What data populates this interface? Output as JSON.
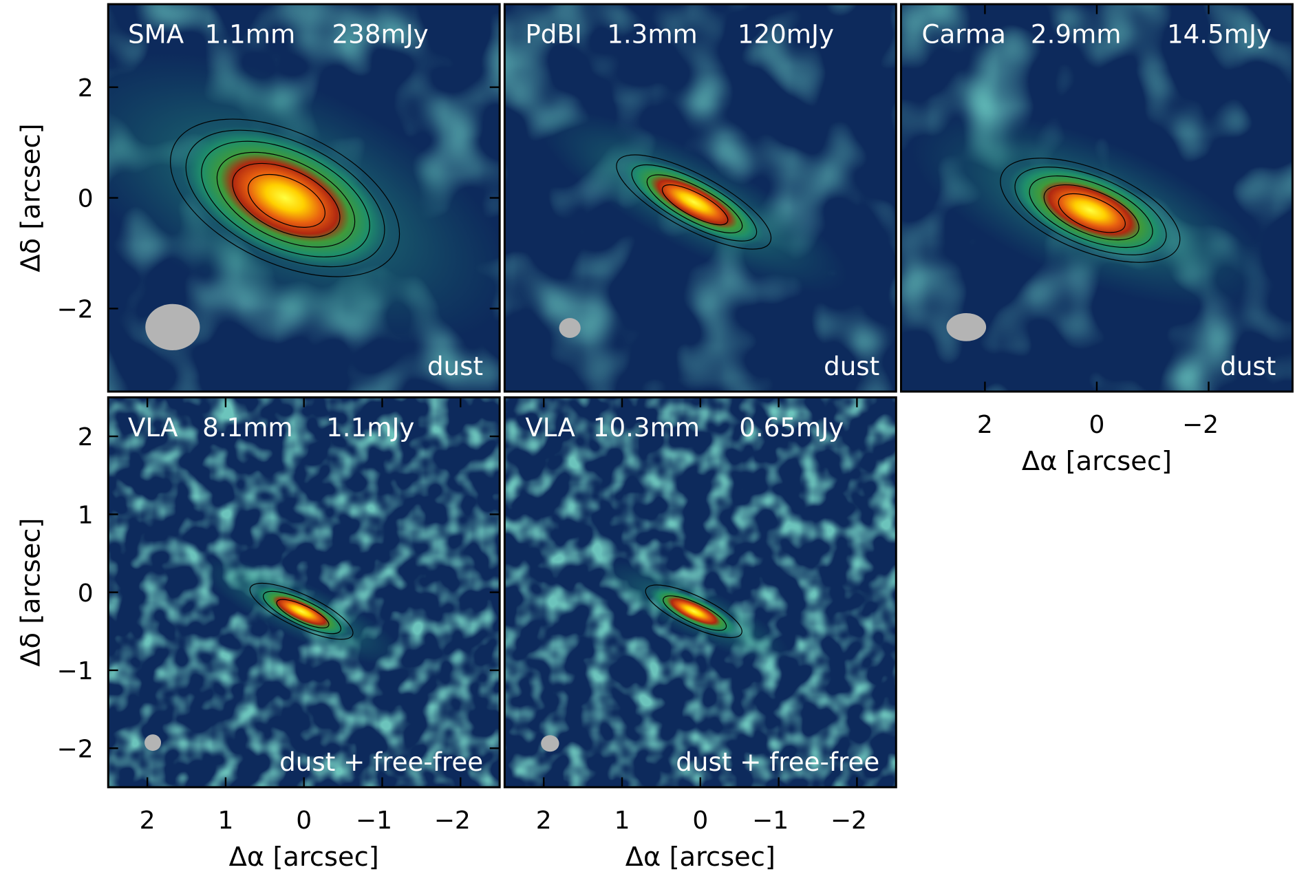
{
  "chart_data": [
    {
      "type": "image",
      "instrument": "SMA",
      "wavelength": "1.1mm",
      "flux": "238mJy",
      "annotation": "dust",
      "xlim": [
        3.5,
        -3.5
      ],
      "ylim": [
        -3.5,
        3.5
      ],
      "yticks": [
        {
          "value": -2,
          "label": "−2"
        },
        0,
        2
      ],
      "ylabel": "Δδ [arcsec]"
    },
    {
      "type": "image",
      "instrument": "PdBI",
      "wavelength": "1.3mm",
      "flux": "120mJy",
      "annotation": "dust",
      "xlim": [
        3.5,
        -3.5
      ],
      "ylim": [
        -3.5,
        3.5
      ]
    },
    {
      "type": "image",
      "instrument": "Carma",
      "wavelength": "2.9mm",
      "flux": "14.5mJy",
      "annotation": "dust",
      "xlim": [
        3.5,
        -3.5
      ],
      "ylim": [
        -3.5,
        3.5
      ],
      "xticks": [
        2,
        0,
        {
          "value": -2,
          "label": "−2"
        }
      ],
      "xlabel": "Δα [arcsec]"
    },
    {
      "type": "image",
      "instrument": "VLA",
      "wavelength": "8.1mm",
      "flux": "1.1mJy",
      "annotation": "dust + free-free",
      "xlim": [
        2.5,
        -2.5
      ],
      "ylim": [
        -2.5,
        2.5
      ],
      "xticks": [
        2,
        1,
        0,
        {
          "value": -1,
          "label": "−1"
        },
        {
          "value": -2,
          "label": "−2"
        }
      ],
      "yticks": [
        {
          "value": -2,
          "label": "−2"
        },
        {
          "value": -1,
          "label": "−1"
        },
        0,
        1,
        2
      ],
      "xlabel": "Δα [arcsec]",
      "ylabel": "Δδ [arcsec]"
    },
    {
      "type": "image",
      "instrument": "VLA",
      "wavelength": "10.3mm",
      "flux": "0.65mJy",
      "annotation": "dust + free-free",
      "xlim": [
        2.5,
        -2.5
      ],
      "ylim": [
        -2.5,
        2.5
      ],
      "xticks": [
        2,
        1,
        0,
        {
          "value": -1,
          "label": "−1"
        },
        {
          "value": -2,
          "label": "−2"
        }
      ],
      "xlabel": "Δα [arcsec]"
    }
  ]
}
